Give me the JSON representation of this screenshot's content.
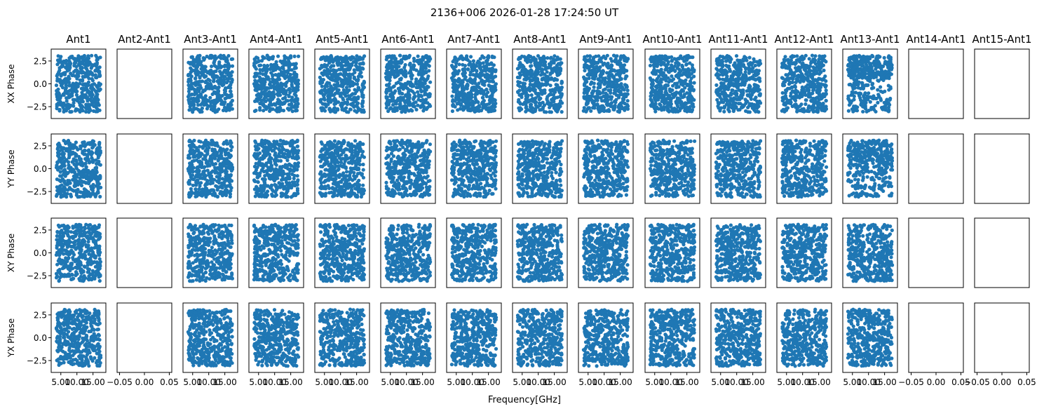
{
  "chart_data": {
    "type": "scatter",
    "title": "2136+006 2026-01-28 17:24:50 UT",
    "xlabel": "Frequency[GHz]",
    "columns": [
      "Ant1",
      "Ant2-Ant1",
      "Ant3-Ant1",
      "Ant4-Ant1",
      "Ant5-Ant1",
      "Ant6-Ant1",
      "Ant7-Ant1",
      "Ant8-Ant1",
      "Ant9-Ant1",
      "Ant10-Ant1",
      "Ant11-Ant1",
      "Ant12-Ant1",
      "Ant13-Ant1",
      "Ant14-Ant1",
      "Ant15-Ant1"
    ],
    "rows": [
      "XX Phase",
      "YY Phase",
      "XY Phase",
      "YX Phase"
    ],
    "ylim": [
      -3.8,
      3.8
    ],
    "xlim": [
      2.0,
      19.0
    ],
    "ytick_labels": [
      "2.5",
      "0.0",
      "−2.5"
    ],
    "ytick_values": [
      2.5,
      0.0,
      -2.5
    ],
    "xtick_labels_data": [
      "5.00",
      "10.00",
      "15.00"
    ],
    "xtick_values_data": [
      5,
      10,
      15
    ],
    "xtick_labels_empty": [
      "−0.05",
      "0.00",
      "0.05"
    ],
    "xtick_values_empty": [
      -0.05,
      0.0,
      0.05
    ],
    "empty_xlim": [
      -0.055,
      0.055
    ],
    "empty_columns": [
      "Ant2-Ant1",
      "Ant14-Ant1",
      "Ant15-Ant1"
    ],
    "marker_color": "#1f77b4",
    "points_per_panel": 420,
    "data_note": "Phase values span the full range of about −3.14 to 3.14 radians uniformly across 3.5 to 17.5 GHz in every populated panel"
  }
}
